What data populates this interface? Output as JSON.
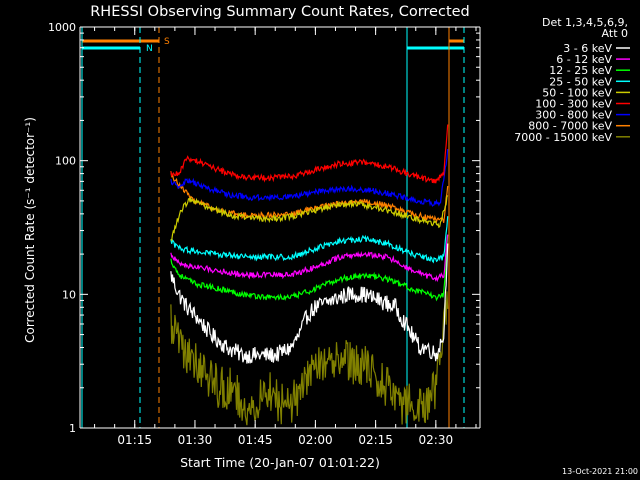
{
  "chart_data": {
    "type": "line",
    "title": "RHESSI Observing Summary Count Rates, Corrected",
    "ylabel": "Corrected Count Rate (s⁻¹ detector⁻¹)",
    "xlabel": "Start Time (20-Jan-07 01:01:22)",
    "timestamp": "13-Oct-2021 21:00",
    "y_scale": "log",
    "ylim": [
      1,
      1000
    ],
    "xlim": [
      "01:01:22",
      "02:41:00"
    ],
    "x_ticks": [
      "01:15",
      "01:30",
      "01:45",
      "02:00",
      "02:15",
      "02:30"
    ],
    "y_ticks": [
      "1",
      "10",
      "100",
      "1000"
    ],
    "legend_header": [
      "Det 1,3,4,5,6,9,",
      "Att 0"
    ],
    "legend_position": "top-right",
    "flags": [
      {
        "label": "N",
        "color": "#00ffff"
      },
      {
        "label": "S",
        "color": "#ff8000"
      }
    ],
    "series": [
      {
        "name": "3 - 6 keV",
        "color": "#ffffff",
        "x": [
          "01:24",
          "01:26",
          "01:28",
          "01:30",
          "01:34",
          "01:38",
          "01:42",
          "01:46",
          "01:50",
          "01:54",
          "01:56",
          "01:58",
          "02:00",
          "02:04",
          "02:08",
          "02:12",
          "02:16",
          "02:20",
          "02:24",
          "02:26",
          "02:28",
          "02:30",
          "02:32",
          "02:33"
        ],
        "y": [
          14,
          10,
          8,
          7,
          5,
          4,
          3.5,
          3.5,
          3.5,
          4,
          5,
          7,
          8,
          9,
          10,
          10,
          9,
          8,
          5,
          4,
          4,
          3.5,
          5,
          30
        ]
      },
      {
        "name": "6 - 12 keV",
        "color": "#ff00ff",
        "x": [
          "01:24",
          "01:26",
          "01:30",
          "01:36",
          "01:42",
          "01:48",
          "01:54",
          "02:00",
          "02:06",
          "02:12",
          "02:18",
          "02:24",
          "02:30",
          "02:32",
          "02:33"
        ],
        "y": [
          20,
          17,
          16,
          15,
          14,
          14,
          14,
          16,
          19,
          20,
          19,
          15,
          13,
          14,
          30
        ]
      },
      {
        "name": "12 - 25 keV",
        "color": "#00ff00",
        "x": [
          "01:24",
          "01:26",
          "01:30",
          "01:36",
          "01:42",
          "01:48",
          "01:54",
          "02:00",
          "02:06",
          "02:12",
          "02:18",
          "02:24",
          "02:30",
          "02:32",
          "02:33"
        ],
        "y": [
          18,
          14,
          12,
          11,
          10,
          9.5,
          9.5,
          11,
          13,
          14,
          13,
          11,
          9.5,
          10,
          30
        ]
      },
      {
        "name": "25 - 50 keV",
        "color": "#00ffff",
        "x": [
          "01:24",
          "01:26",
          "01:30",
          "01:36",
          "01:42",
          "01:48",
          "01:54",
          "02:00",
          "02:06",
          "02:12",
          "02:18",
          "02:24",
          "02:30",
          "02:32",
          "02:33"
        ],
        "y": [
          25,
          22,
          21,
          20,
          19,
          19,
          19,
          22,
          25,
          26,
          24,
          20,
          18,
          19,
          40
        ]
      },
      {
        "name": "50 - 100 keV",
        "color": "#cccc00",
        "x": [
          "01:24",
          "01:25",
          "01:27",
          "01:29",
          "01:33",
          "01:39",
          "01:45",
          "01:51",
          "01:57",
          "02:03",
          "02:09",
          "02:15",
          "02:21",
          "02:27",
          "02:31",
          "02:33"
        ],
        "y": [
          25,
          32,
          45,
          52,
          45,
          39,
          37,
          37,
          40,
          45,
          48,
          45,
          40,
          35,
          33,
          55
        ]
      },
      {
        "name": "100 - 300 keV",
        "color": "#ff0000",
        "x": [
          "01:24",
          "01:26",
          "01:28",
          "01:30",
          "01:36",
          "01:42",
          "01:48",
          "01:54",
          "02:00",
          "02:06",
          "02:12",
          "02:18",
          "02:24",
          "02:30",
          "02:32",
          "02:33"
        ],
        "y": [
          80,
          80,
          105,
          100,
          85,
          75,
          74,
          76,
          85,
          95,
          97,
          90,
          78,
          70,
          80,
          190
        ]
      },
      {
        "name": "300 - 800 keV",
        "color": "#0000ff",
        "x": [
          "01:24",
          "01:26",
          "01:28",
          "01:32",
          "01:38",
          "01:44",
          "01:50",
          "01:56",
          "02:02",
          "02:08",
          "02:14",
          "02:20",
          "02:26",
          "02:31",
          "02:33"
        ],
        "y": [
          70,
          65,
          72,
          64,
          56,
          53,
          53,
          55,
          60,
          62,
          60,
          55,
          50,
          47,
          120
        ]
      },
      {
        "name": "800 - 7000 keV",
        "color": "#ff8000",
        "x": [
          "01:24",
          "01:26",
          "01:30",
          "01:36",
          "01:42",
          "01:48",
          "01:54",
          "02:00",
          "02:06",
          "02:12",
          "02:18",
          "02:24",
          "02:30",
          "02:32",
          "02:33"
        ],
        "y": [
          80,
          65,
          50,
          42,
          39,
          39,
          40,
          44,
          48,
          50,
          46,
          40,
          36,
          36,
          70
        ]
      },
      {
        "name": "7000 - 15000 keV",
        "color": "#808000",
        "x": [
          "01:24",
          "01:27",
          "01:30",
          "01:33",
          "01:36",
          "01:39",
          "01:42",
          "01:45",
          "01:48",
          "01:51",
          "01:54",
          "01:57",
          "02:00",
          "02:03",
          "02:06",
          "02:09",
          "02:12",
          "02:15",
          "02:18",
          "02:21",
          "02:24",
          "02:27",
          "02:30",
          "02:33"
        ],
        "y": [
          6,
          4,
          3,
          2.5,
          2,
          2,
          1.5,
          1.5,
          2,
          1.5,
          1.5,
          2,
          3,
          3,
          3.5,
          3,
          3,
          2.5,
          2,
          1.5,
          1.5,
          1.5,
          2,
          10
        ]
      }
    ]
  }
}
